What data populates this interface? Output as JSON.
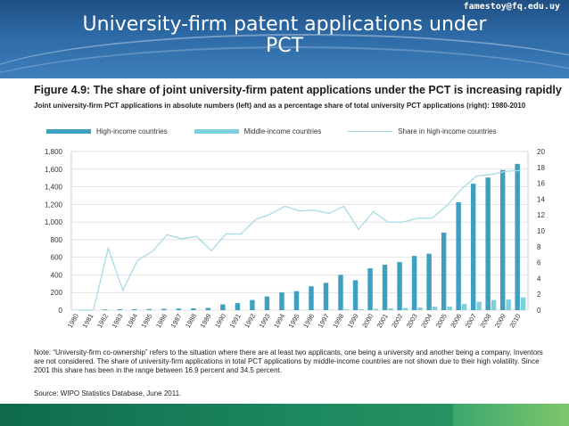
{
  "header": {
    "email": "famestoy@fq.edu.uy",
    "title_line1": "University-firm patent applications under",
    "title_line2": "PCT"
  },
  "figure": {
    "title": "Figure 4.9: The share of joint university-firm patent applications under the PCT is increasing rapidly",
    "subtitle": "Joint university-firm PCT applications in absolute numbers (left) and as a percentage share of total university PCT applications (right): 1980-2010",
    "note": "Note: “University-firm co-ownership” refers to the situation where there are at least two applicants, one being a university and another being a company. Inventors are not considered. The share of university-firm applications in total PCT applications by middle-income countries are not shown due to their high volatility. Since 2001 this share has been in the range between 16.9 percent and 34.5 percent.",
    "source": "Source: WIPO Statistics Database, June 2011."
  },
  "colors": {
    "high_income": "#3f9fc0",
    "middle_income": "#7ccfdb",
    "share_line": "#a8dbe4",
    "grid": "#d8d8d8"
  },
  "chart_data": {
    "type": "bar",
    "categories": [
      "1980",
      "1981",
      "1982",
      "1983",
      "1984",
      "1985",
      "1986",
      "1987",
      "1988",
      "1989",
      "1990",
      "1991",
      "1992",
      "1993",
      "1994",
      "1995",
      "1996",
      "1997",
      "1998",
      "1999",
      "2000",
      "2001",
      "2002",
      "2003",
      "2004",
      "2005",
      "2006",
      "2007",
      "2008",
      "2009",
      "2010"
    ],
    "series": [
      {
        "name": "High-income countries",
        "kind": "bar",
        "axis": "left",
        "values": [
          2,
          3,
          8,
          10,
          10,
          12,
          15,
          18,
          20,
          25,
          65,
          80,
          115,
          155,
          200,
          215,
          270,
          310,
          400,
          340,
          475,
          515,
          545,
          615,
          640,
          880,
          1225,
          1435,
          1505,
          1590,
          1660
        ]
      },
      {
        "name": "Middle-income countries",
        "kind": "bar",
        "axis": "left",
        "values": [
          0,
          0,
          0,
          0,
          0,
          0,
          0,
          0,
          0,
          0,
          0,
          0,
          0,
          0,
          2,
          3,
          5,
          5,
          8,
          10,
          15,
          20,
          25,
          30,
          40,
          40,
          70,
          95,
          115,
          120,
          145
        ]
      },
      {
        "name": "Share in high-income countries",
        "kind": "line",
        "axis": "right",
        "values": [
          0,
          0,
          7.8,
          2.5,
          6.3,
          7.4,
          9.5,
          9.0,
          9.3,
          7.5,
          9.6,
          9.6,
          11.4,
          12.1,
          13.1,
          12.5,
          12.6,
          12.2,
          13.1,
          10.2,
          12.4,
          11.1,
          11.1,
          11.6,
          11.6,
          13.2,
          15.3,
          16.9,
          17.1,
          17.5,
          17.6
        ]
      }
    ],
    "ylim_left": [
      0,
      1800
    ],
    "yticks_left": [
      "0",
      "200",
      "400",
      "600",
      "800",
      "1,000",
      "1,200",
      "1,400",
      "1,600",
      "1,800"
    ],
    "ylim_right": [
      0,
      20
    ],
    "yticks_right": [
      "0",
      "2",
      "4",
      "6",
      "8",
      "10",
      "12",
      "14",
      "16",
      "18",
      "20"
    ],
    "grid": true,
    "legend_position": "top-left"
  }
}
